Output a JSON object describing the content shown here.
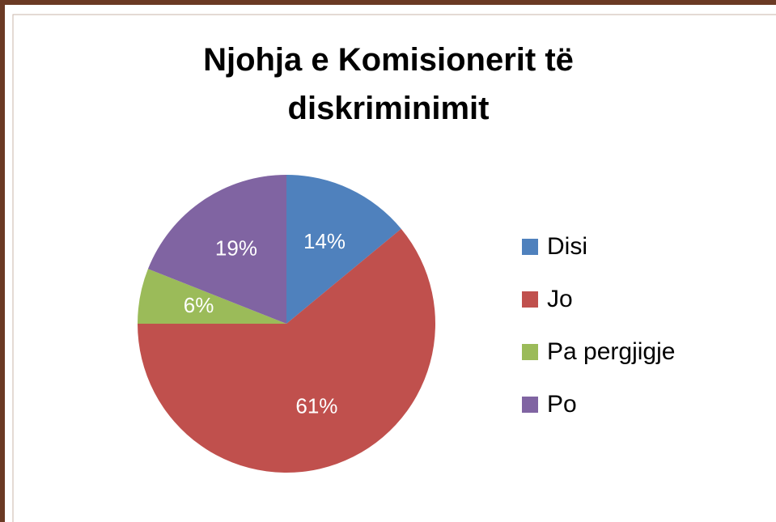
{
  "chart_data": {
    "type": "pie",
    "title": "Njohja e Komisionerit të diskriminimit",
    "categories": [
      "Disi",
      "Jo",
      "Pa pergjigje",
      "Po"
    ],
    "values": [
      14,
      61,
      6,
      19
    ],
    "value_labels": [
      "14%",
      "61%",
      "6%",
      "19%"
    ],
    "colors": [
      "#4f81bd",
      "#c0504d",
      "#9bbb59",
      "#8064a2"
    ],
    "legend": "right"
  }
}
